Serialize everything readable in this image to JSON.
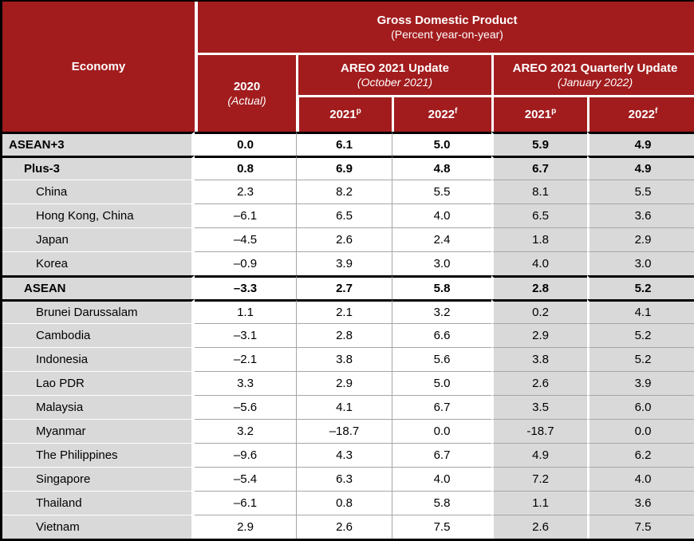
{
  "colors": {
    "header_red": "#A21C1E",
    "cell_gray": "#D9D9D9",
    "grid_gray": "#A6A6A6",
    "border_black": "#000000",
    "header_text": "#FFFFFF"
  },
  "table": {
    "header": {
      "economy_label": "Economy",
      "gdp_title": "Gross Domestic Product",
      "gdp_subtitle": "(Percent year-on-year)",
      "col2020_year": "2020",
      "col2020_note": "(Actual)",
      "areo_update_title": "AREO 2021 Update",
      "areo_update_subtitle": "(October 2021)",
      "areo_quarterly_title": "AREO 2021 Quarterly Update",
      "areo_quarterly_subtitle": "(January 2022)",
      "subcols": [
        {
          "year": "2021",
          "sup": "p"
        },
        {
          "year": "2022",
          "sup": "f"
        },
        {
          "year": "2021",
          "sup": "p"
        },
        {
          "year": "2022",
          "sup": "f"
        }
      ]
    },
    "rows": [
      {
        "economy": "ASEAN+3",
        "level": 0,
        "bold": true,
        "divider_above": true,
        "values": [
          "0.0",
          "6.1",
          "5.0",
          "5.9",
          "4.9"
        ]
      },
      {
        "economy": "Plus-3",
        "level": 1,
        "bold": true,
        "divider_above": true,
        "values": [
          "0.8",
          "6.9",
          "4.8",
          "6.7",
          "4.9"
        ]
      },
      {
        "economy": "China",
        "level": 2,
        "bold": false,
        "divider_above": false,
        "values": [
          "2.3",
          "8.2",
          "5.5",
          "8.1",
          "5.5"
        ]
      },
      {
        "economy": "Hong Kong, China",
        "level": 2,
        "bold": false,
        "divider_above": false,
        "values": [
          "–6.1",
          "6.5",
          "4.0",
          "6.5",
          "3.6"
        ]
      },
      {
        "economy": "Japan",
        "level": 2,
        "bold": false,
        "divider_above": false,
        "values": [
          "–4.5",
          "2.6",
          "2.4",
          "1.8",
          "2.9"
        ]
      },
      {
        "economy": "Korea",
        "level": 2,
        "bold": false,
        "divider_above": false,
        "values": [
          "–0.9",
          "3.9",
          "3.0",
          "4.0",
          "3.0"
        ]
      },
      {
        "economy": "ASEAN",
        "level": 1,
        "bold": true,
        "divider_above": true,
        "values": [
          "–3.3",
          "2.7",
          "5.8",
          "2.8",
          "5.2"
        ]
      },
      {
        "economy": "Brunei Darussalam",
        "level": 2,
        "bold": false,
        "divider_above": true,
        "values": [
          "1.1",
          "2.1",
          "3.2",
          "0.2",
          "4.1"
        ]
      },
      {
        "economy": "Cambodia",
        "level": 2,
        "bold": false,
        "divider_above": false,
        "values": [
          "–3.1",
          "2.8",
          "6.6",
          "2.9",
          "5.2"
        ]
      },
      {
        "economy": "Indonesia",
        "level": 2,
        "bold": false,
        "divider_above": false,
        "values": [
          "–2.1",
          "3.8",
          "5.6",
          "3.8",
          "5.2"
        ]
      },
      {
        "economy": "Lao PDR",
        "level": 2,
        "bold": false,
        "divider_above": false,
        "values": [
          "3.3",
          "2.9",
          "5.0",
          "2.6",
          "3.9"
        ]
      },
      {
        "economy": "Malaysia",
        "level": 2,
        "bold": false,
        "divider_above": false,
        "values": [
          "–5.6",
          "4.1",
          "6.7",
          "3.5",
          "6.0"
        ]
      },
      {
        "economy": "Myanmar",
        "level": 2,
        "bold": false,
        "divider_above": false,
        "values": [
          "3.2",
          "–18.7",
          "0.0",
          "-18.7",
          "0.0"
        ]
      },
      {
        "economy": "The Philippines",
        "level": 2,
        "bold": false,
        "divider_above": false,
        "values": [
          "–9.6",
          "4.3",
          "6.7",
          "4.9",
          "6.2"
        ]
      },
      {
        "economy": "Singapore",
        "level": 2,
        "bold": false,
        "divider_above": false,
        "values": [
          "–5.4",
          "6.3",
          "4.0",
          "7.2",
          "4.0"
        ]
      },
      {
        "economy": "Thailand",
        "level": 2,
        "bold": false,
        "divider_above": false,
        "values": [
          "–6.1",
          "0.8",
          "5.8",
          "1.1",
          "3.6"
        ]
      },
      {
        "economy": "Vietnam",
        "level": 2,
        "bold": false,
        "divider_above": false,
        "values": [
          "2.9",
          "2.6",
          "7.5",
          "2.6",
          "7.5"
        ]
      }
    ]
  },
  "chart_data": {
    "type": "table",
    "title": "Gross Domestic Product (Percent year-on-year)",
    "columns": [
      "Economy",
      "2020 (Actual)",
      "AREO 2021 Update (October 2021) — 2021p",
      "AREO 2021 Update (October 2021) — 2022f",
      "AREO 2021 Quarterly Update (January 2022) — 2021p",
      "AREO 2021 Quarterly Update (January 2022) — 2022f"
    ],
    "rows": [
      [
        "ASEAN+3",
        0.0,
        6.1,
        5.0,
        5.9,
        4.9
      ],
      [
        "Plus-3",
        0.8,
        6.9,
        4.8,
        6.7,
        4.9
      ],
      [
        "China",
        2.3,
        8.2,
        5.5,
        8.1,
        5.5
      ],
      [
        "Hong Kong, China",
        -6.1,
        6.5,
        4.0,
        6.5,
        3.6
      ],
      [
        "Japan",
        -4.5,
        2.6,
        2.4,
        1.8,
        2.9
      ],
      [
        "Korea",
        -0.9,
        3.9,
        3.0,
        4.0,
        3.0
      ],
      [
        "ASEAN",
        -3.3,
        2.7,
        5.8,
        2.8,
        5.2
      ],
      [
        "Brunei Darussalam",
        1.1,
        2.1,
        3.2,
        0.2,
        4.1
      ],
      [
        "Cambodia",
        -3.1,
        2.8,
        6.6,
        2.9,
        5.2
      ],
      [
        "Indonesia",
        -2.1,
        3.8,
        5.6,
        3.8,
        5.2
      ],
      [
        "Lao PDR",
        3.3,
        2.9,
        5.0,
        2.6,
        3.9
      ],
      [
        "Malaysia",
        -5.6,
        4.1,
        6.7,
        3.5,
        6.0
      ],
      [
        "Myanmar",
        3.2,
        -18.7,
        0.0,
        -18.7,
        0.0
      ],
      [
        "The Philippines",
        -9.6,
        4.3,
        6.7,
        4.9,
        6.2
      ],
      [
        "Singapore",
        -5.4,
        6.3,
        4.0,
        7.2,
        4.0
      ],
      [
        "Thailand",
        -6.1,
        0.8,
        5.8,
        1.1,
        3.6
      ],
      [
        "Vietnam",
        2.9,
        2.6,
        7.5,
        2.6,
        7.5
      ]
    ]
  }
}
